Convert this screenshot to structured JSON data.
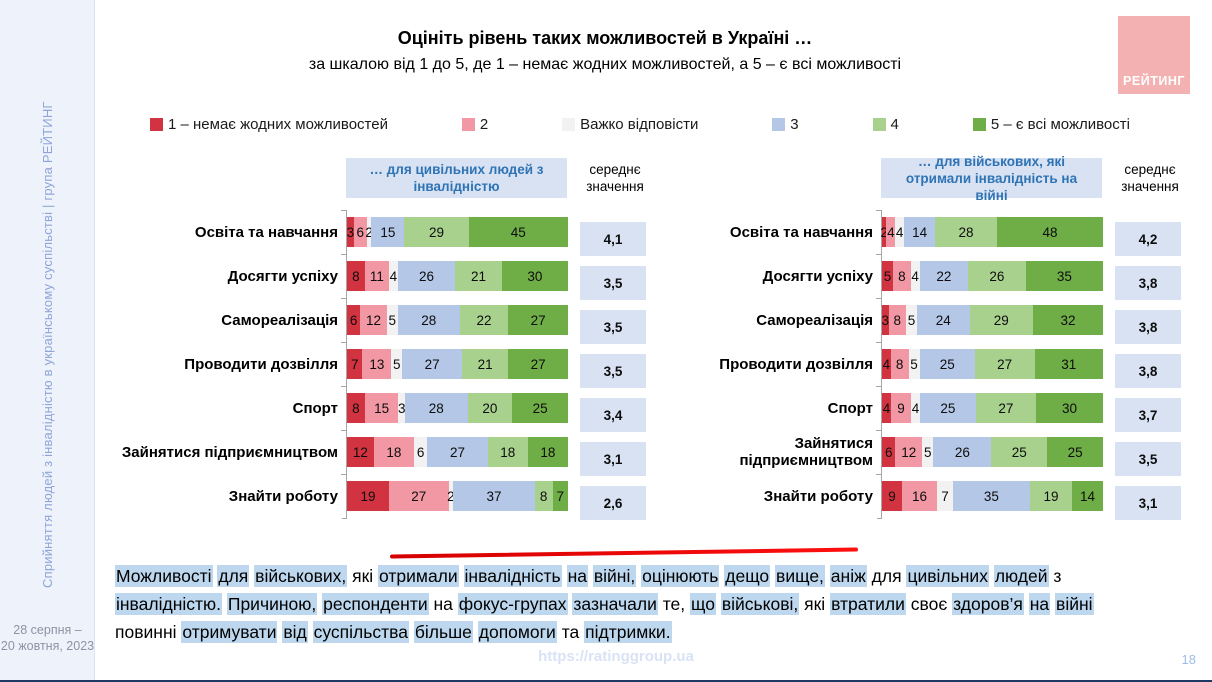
{
  "sidebar": {
    "study_title": "Сприйняття людей з інвалідністю в українському суспільстві | група РЕЙТИНГ",
    "date_range": "28 серпня –\n20 жовтня, 2023"
  },
  "logo": {
    "label": "РЕЙТИНГ",
    "color": "#f3b1b1"
  },
  "header": {
    "title": "Оцініть рівень таких можливостей в Україні …",
    "subtitle": "за шкалою від 1 до 5, де 1 – немає жодних можливостей, а 5 – є всі можливості"
  },
  "legend": {
    "items": [
      {
        "label": "1 – немає жодних можливостей",
        "color": "#d23340"
      },
      {
        "label": "2",
        "color": "#f298a4"
      },
      {
        "label": "Важко відповісти",
        "color": "#f2f2f2"
      },
      {
        "label": "3",
        "color": "#b4c7e7"
      },
      {
        "label": "4",
        "color": "#a9d18e"
      },
      {
        "label": "5 – є всі можливості",
        "color": "#6fad47"
      }
    ]
  },
  "mean_header": "середнє значення",
  "chart_data": {
    "type": "bar",
    "stacked": true,
    "orientation": "horizontal",
    "x_range": [
      0,
      100
    ],
    "unit": "%",
    "categories": [
      "Освіта та навчання",
      "Досягти успіху",
      "Самореалізація",
      "Проводити дозвілля",
      "Спорт",
      "Зайнятися підприємництвом",
      "Знайти роботу"
    ],
    "legend_labels": [
      "1 – немає жодних можливостей",
      "2",
      "Важко відповісти",
      "3",
      "4",
      "5 – є всі можливості"
    ],
    "panels": [
      {
        "title": "… для цивільних людей з інвалідністю",
        "series": [
          {
            "name": "1 – немає жодних можливостей",
            "values": [
              3,
              8,
              6,
              7,
              8,
              12,
              19
            ]
          },
          {
            "name": "2",
            "values": [
              6,
              11,
              12,
              13,
              15,
              18,
              27
            ]
          },
          {
            "name": "Важко відповісти",
            "values": [
              2,
              4,
              5,
              5,
              3,
              6,
              2
            ]
          },
          {
            "name": "3",
            "values": [
              15,
              26,
              28,
              27,
              28,
              27,
              37
            ]
          },
          {
            "name": "4",
            "values": [
              29,
              21,
              22,
              21,
              20,
              18,
              8
            ]
          },
          {
            "name": "5 – є всі можливості",
            "values": [
              45,
              30,
              27,
              27,
              25,
              18,
              7
            ]
          }
        ],
        "means": [
          "4,1",
          "3,5",
          "3,5",
          "3,5",
          "3,4",
          "3,1",
          "2,6"
        ]
      },
      {
        "title": "… для військових, які отримали інвалідність на війні",
        "series": [
          {
            "name": "1 – немає жодних можливостей",
            "values": [
              2,
              5,
              3,
              4,
              4,
              6,
              9
            ]
          },
          {
            "name": "2",
            "values": [
              4,
              8,
              8,
              8,
              9,
              12,
              16
            ]
          },
          {
            "name": "Важко відповісти",
            "values": [
              4,
              4,
              5,
              5,
              4,
              5,
              7
            ]
          },
          {
            "name": "3",
            "values": [
              14,
              22,
              24,
              25,
              25,
              26,
              35
            ]
          },
          {
            "name": "4",
            "values": [
              28,
              26,
              29,
              27,
              27,
              25,
              19
            ]
          },
          {
            "name": "5 – є всі можливості",
            "values": [
              48,
              35,
              32,
              31,
              30,
              25,
              14
            ]
          }
        ],
        "means": [
          "4,2",
          "3,8",
          "3,8",
          "3,8",
          "3,7",
          "3,5",
          "3,1"
        ]
      }
    ]
  },
  "note": {
    "words": [
      [
        "Можливості",
        1
      ],
      [
        "для",
        1
      ],
      [
        "військових,",
        1
      ],
      [
        "які",
        0
      ],
      [
        "отримали",
        1
      ],
      [
        "інвалідність",
        1
      ],
      [
        "на",
        1
      ],
      [
        "війні,",
        1
      ],
      [
        "оцінюють",
        1
      ],
      [
        "дещо",
        1
      ],
      [
        "вище,",
        1
      ],
      [
        "аніж",
        1
      ],
      [
        "для",
        0
      ],
      [
        "цивільних",
        1
      ],
      [
        "людей",
        1
      ],
      [
        "з",
        0
      ],
      [
        "інвалідністю.",
        1
      ],
      [
        "Причиною,",
        1
      ],
      [
        "респонденти",
        1
      ],
      [
        "на",
        0
      ],
      [
        "фокус-групах",
        1
      ],
      [
        "зазначали",
        1
      ],
      [
        "те,",
        0
      ],
      [
        "що",
        1
      ],
      [
        "військові,",
        1
      ],
      [
        "які",
        0
      ],
      [
        "втратили",
        1
      ],
      [
        "своє",
        0
      ],
      [
        "здоров’я",
        1
      ],
      [
        "на",
        1
      ],
      [
        "війні",
        1
      ],
      [
        "повинні",
        0
      ],
      [
        "отримувати",
        1
      ],
      [
        "від",
        1
      ],
      [
        "суспільства",
        1
      ],
      [
        "більше",
        1
      ],
      [
        "допомоги",
        1
      ],
      [
        "та",
        0
      ],
      [
        "підтримки.",
        1
      ]
    ]
  },
  "footer": {
    "url": "https://ratinggroup.ua",
    "page": "18"
  }
}
